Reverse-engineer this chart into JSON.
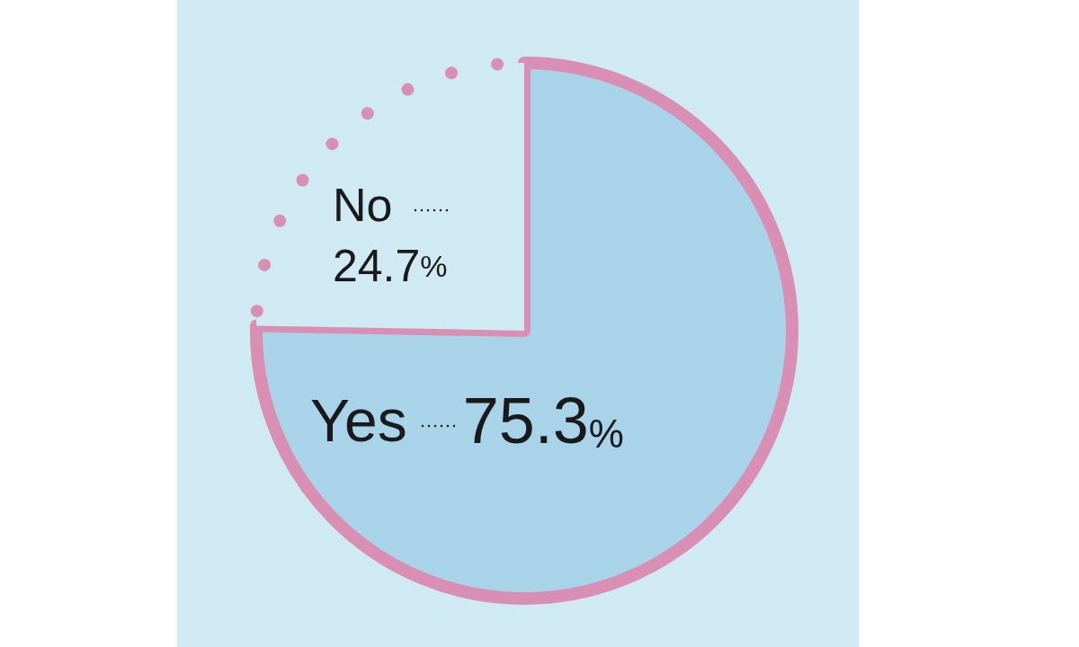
{
  "chart_data": {
    "type": "pie",
    "categories": [
      "Yes",
      "No"
    ],
    "values": [
      75.3,
      24.7
    ],
    "value_labels": [
      "75.3%",
      "24.7%"
    ],
    "colors": [
      "#a9d3e9",
      "#cfeaf3"
    ]
  }
}
